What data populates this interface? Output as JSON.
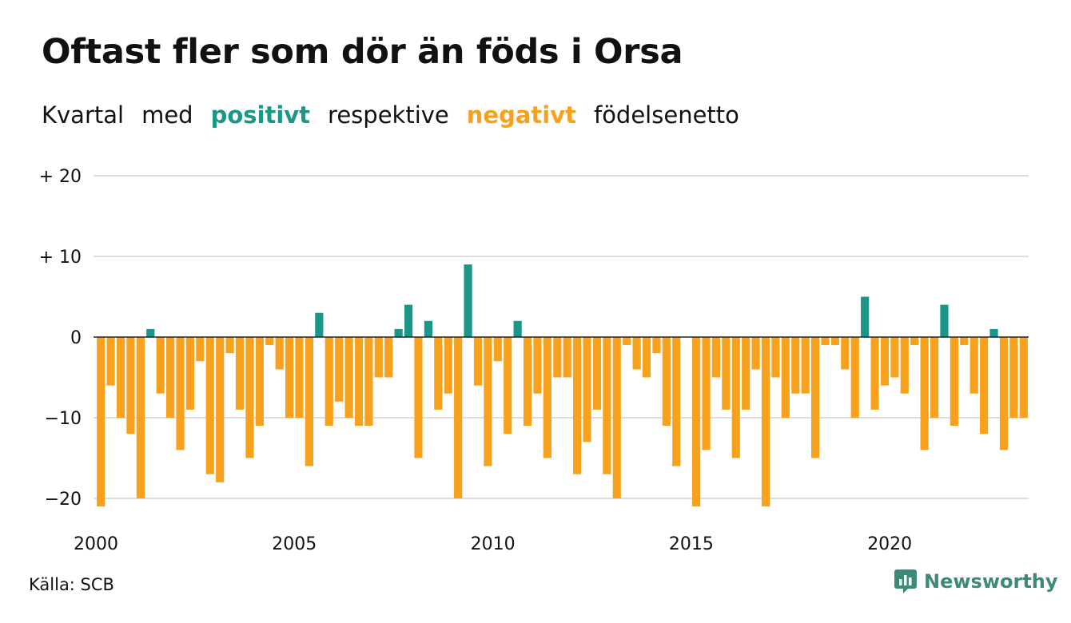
{
  "title": "Oftast fler som dör än föds i Orsa",
  "subtitle": {
    "w1": "Kvartal",
    "w2": "med",
    "positive": "positivt",
    "w3": "respektive",
    "negative": "negativt",
    "w4": "födelsenetto"
  },
  "colors": {
    "positive": "#1b9687",
    "negative": "#f8a11d",
    "grid": "#dddddd",
    "text": "#111111",
    "brand": "#3d8a78"
  },
  "source": "Källa: SCB",
  "brand": "Newsworthy",
  "chart_data": {
    "type": "bar",
    "title": "Oftast fler som dör än föds i Orsa",
    "subtitle": "Kvartal med positivt respektive negativt födelsenetto",
    "x_tick_labels": [
      "2000",
      "2005",
      "2010",
      "2015",
      "2020"
    ],
    "y_tick_labels": [
      "+ 20",
      "+ 10",
      "0",
      "−10",
      "−20"
    ],
    "y_ticks": [
      20,
      10,
      0,
      -10,
      -20
    ],
    "ylim": [
      -21,
      20
    ],
    "grid": true,
    "start_year": 2000,
    "periods_per_year": 4,
    "values": [
      -21,
      -6,
      -10,
      -12,
      -20,
      1,
      -7,
      -10,
      -14,
      -9,
      -3,
      -17,
      -18,
      -2,
      -9,
      -15,
      -11,
      -1,
      -4,
      -10,
      -10,
      -16,
      3,
      -11,
      -8,
      -10,
      -11,
      -11,
      -5,
      -5,
      1,
      4,
      -15,
      2,
      -9,
      -7,
      -20,
      9,
      -6,
      -16,
      -3,
      -12,
      2,
      -11,
      -7,
      -15,
      -5,
      -5,
      -17,
      -13,
      -9,
      -17,
      -20,
      -1,
      -4,
      -5,
      -2,
      -11,
      -16,
      0,
      -21,
      -14,
      -5,
      -9,
      -15,
      -9,
      -4,
      -21,
      -5,
      -10,
      -7,
      -7,
      -15,
      -1,
      -1,
      -4,
      -10,
      5,
      -9,
      -6,
      -5,
      -7,
      -1,
      -14,
      -10,
      4,
      -11,
      -1,
      -7,
      -12,
      1,
      -14,
      -10,
      -10
    ]
  }
}
